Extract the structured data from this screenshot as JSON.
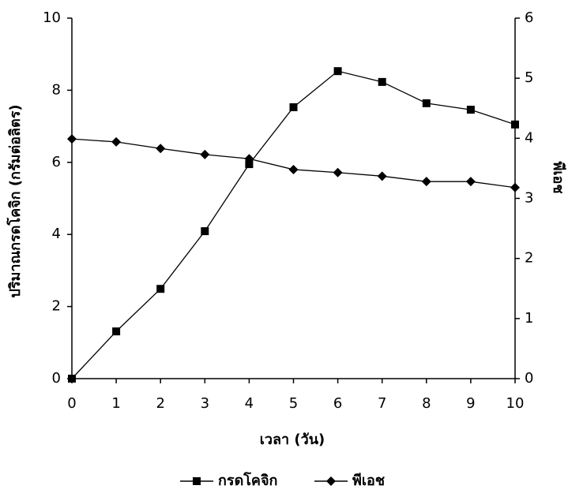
{
  "chart_data": {
    "type": "line",
    "x_label": "เวลา (วัน)",
    "y_label": "ปริมาณกรดโคจิก (กรัมต่อลิตร)",
    "y2_label": "พีเอช",
    "x": [
      0,
      1,
      2,
      3,
      4,
      5,
      6,
      7,
      8,
      9,
      10
    ],
    "xlim": [
      0,
      10
    ],
    "xticks": [
      0,
      1,
      2,
      3,
      4,
      5,
      6,
      7,
      8,
      9,
      10
    ],
    "ylim": [
      0,
      10
    ],
    "yticks": [
      0,
      2,
      4,
      6,
      8,
      10
    ],
    "y2lim": [
      0,
      6
    ],
    "y2ticks": [
      0,
      1,
      2,
      3,
      4,
      5,
      6
    ],
    "legend": "bottom",
    "series": [
      {
        "name": "กรดโคจิก",
        "color": "#000000",
        "marker": "square",
        "values": [
          0,
          1.31,
          2.49,
          4.09,
          5.95,
          7.53,
          8.53,
          8.23,
          7.64,
          7.46,
          7.05
        ]
      },
      {
        "name": "พีเอช",
        "color": "#000000",
        "marker": "diamond",
        "axis": "y2",
        "values": [
          3.99,
          3.94,
          3.83,
          3.73,
          3.66,
          3.48,
          3.43,
          3.37,
          3.28,
          3.28,
          3.18
        ]
      }
    ]
  }
}
